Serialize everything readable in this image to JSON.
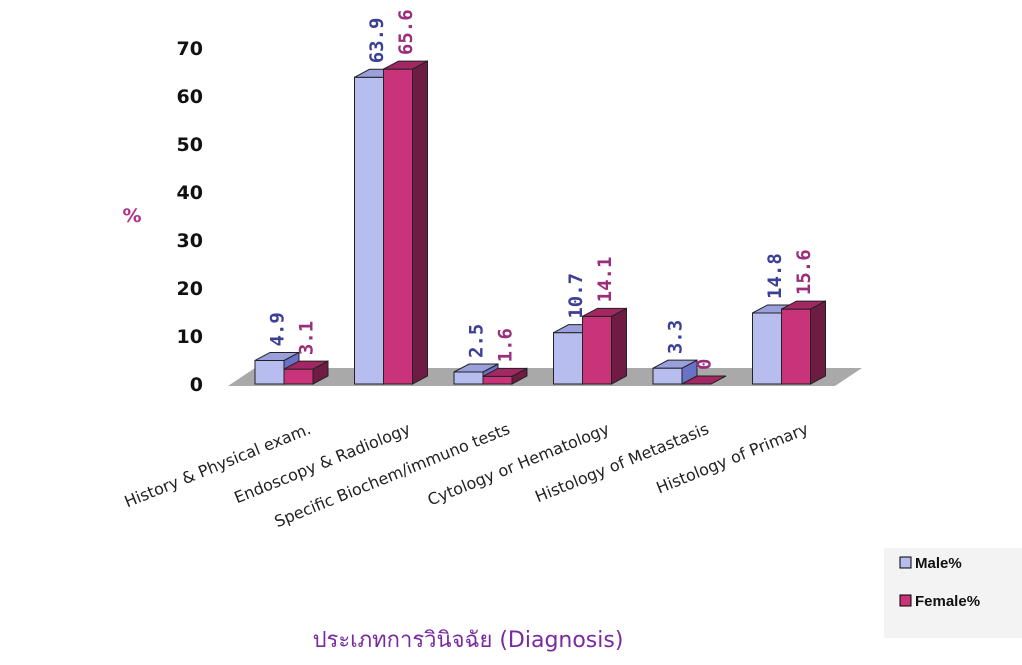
{
  "chart_data": {
    "type": "bar",
    "ylabel": "%",
    "xlabel": "ประเภทการวินิจฉัย (Diagnosis)",
    "ylim": [
      0,
      70
    ],
    "yticks": [
      0,
      10,
      20,
      30,
      40,
      50,
      60,
      70
    ],
    "categories": [
      "History & Physical exam.",
      "Endoscopy & Radiology",
      "Specific Biochem/immuno tests",
      "Cytology or Hematology",
      "Histology of Metastasis",
      "Histology of Primary"
    ],
    "series": [
      {
        "name": "Male%",
        "values": [
          4.9,
          63.9,
          2.5,
          10.7,
          3.3,
          14.8
        ],
        "value_labels": [
          "4.9",
          "63.9",
          "2.5",
          "10.7",
          "3.3",
          "14.8"
        ]
      },
      {
        "name": "Female%",
        "values": [
          3.1,
          65.6,
          1.6,
          14.1,
          0,
          15.6
        ],
        "value_labels": [
          "3.1",
          "65.6",
          "1.6",
          "14.1",
          "0",
          "15.6"
        ]
      }
    ],
    "legend_position": "bottom-right",
    "grid": false,
    "colors": {
      "male_front": "#b8bdf0",
      "male_top": "#9aa0dc",
      "male_side": "#6a72c8",
      "male_label": "#3b3f96",
      "female_front": "#c8337a",
      "female_top": "#a32762",
      "female_side": "#6e1c44",
      "female_label": "#9a2d7c",
      "floor": "#a9a9a9"
    }
  }
}
